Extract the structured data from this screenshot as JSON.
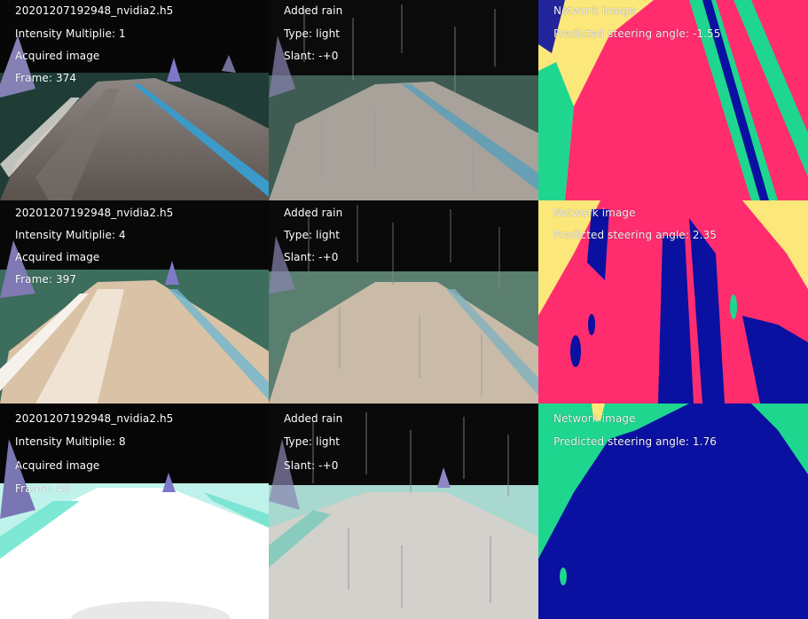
{
  "rows": [
    {
      "acquired": {
        "model": "20201207192948_nvidia2.h5",
        "intensity": "Intensity Multiplie: 1",
        "title": "Acquired image",
        "frame": "Frame:  374"
      },
      "rain": {
        "title": "Added rain",
        "type": "Type: light",
        "slant": "Slant: -+0"
      },
      "network": {
        "title": "Network image",
        "steering": "Predicted steering angle: -1.55"
      }
    },
    {
      "acquired": {
        "model": "20201207192948_nvidia2.h5",
        "intensity": "Intensity Multiplie: 4",
        "title": "Acquired image",
        "frame": "Frame:  397"
      },
      "rain": {
        "title": "Added rain",
        "type": "Type: light",
        "slant": "Slant: -+0"
      },
      "network": {
        "title": "Network image",
        "steering": "Predicted steering angle: 2.35"
      }
    },
    {
      "acquired": {
        "model": "20201207192948_nvidia2.h5",
        "intensity": "Intensity Multiplie: 8",
        "title": "Acquired image",
        "frame": "Frame:  40"
      },
      "rain": {
        "title": "Added rain",
        "type": "Type: light",
        "slant": "Slant: -+0"
      },
      "network": {
        "title": "Network image",
        "steering": "Predicted steering angle: 1.76"
      }
    }
  ],
  "colors": {
    "segmentation_road": "#ff2d6e",
    "segmentation_lane": "#1fd68f",
    "segmentation_sky": "#fbe77a",
    "segmentation_dark": "#0a10a0"
  }
}
